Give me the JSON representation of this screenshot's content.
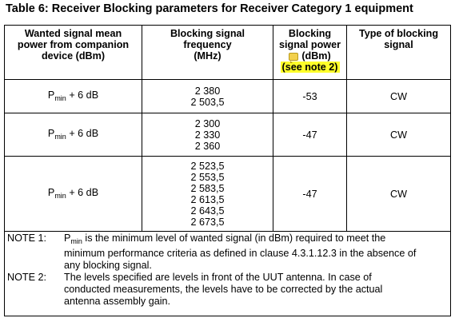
{
  "title": "Table 6: Receiver Blocking parameters for Receiver Category 1 equipment",
  "headers": {
    "col1": [
      "Wanted signal mean",
      "power from companion",
      "device (dBm)"
    ],
    "col2": [
      "Blocking signal",
      "frequency",
      "(MHz)"
    ],
    "col3": [
      "Blocking",
      "signal power",
      "(dBm)"
    ],
    "col3_note": "(see note 2)",
    "col4": [
      "Type of blocking",
      "signal"
    ]
  },
  "rows": [
    {
      "wanted_prefix": "P",
      "wanted_sub": "min",
      "wanted_suffix": " + 6 dB",
      "frequencies": [
        "2 380",
        "2 503,5"
      ],
      "power": "-53",
      "type": "CW"
    },
    {
      "wanted_prefix": "P",
      "wanted_sub": "min",
      "wanted_suffix": " + 6 dB",
      "frequencies": [
        "2 300",
        "2 330",
        "2 360"
      ],
      "power": "-47",
      "type": "CW"
    },
    {
      "wanted_prefix": "P",
      "wanted_sub": "min",
      "wanted_suffix": " + 6 dB",
      "frequencies": [
        "2 523,5",
        "2 553,5",
        "2 583,5",
        "2 613,5",
        "2 643,5",
        "2 673,5"
      ],
      "power": "-47",
      "type": "CW"
    }
  ],
  "notes": {
    "note1_label": "NOTE 1:",
    "note1_prefix": "P",
    "note1_sub": "min",
    "note1_lines": [
      " is the minimum level of wanted signal (in dBm) required to meet the",
      "minimum performance criteria as defined in clause 4.3.1.12.3 in the absence of",
      "any blocking signal."
    ],
    "note2_label": "NOTE 2:",
    "note2_lines": [
      "The levels specified are levels in front of the UUT antenna. In case of",
      "conducted measurements, the levels have to be corrected by the actual",
      "antenna assembly gain."
    ]
  }
}
